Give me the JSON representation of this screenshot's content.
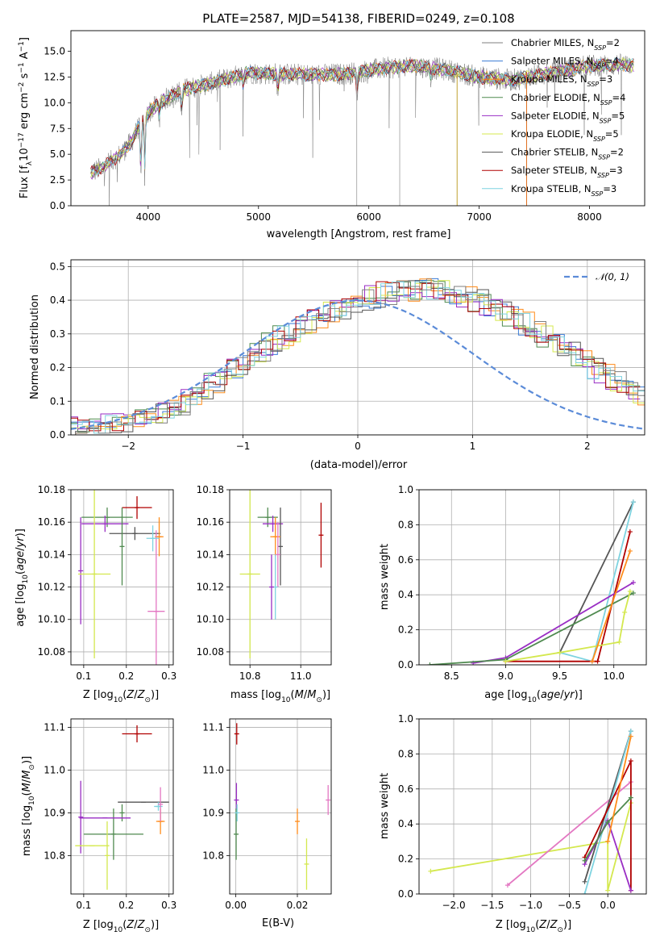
{
  "colors": {
    "chabrier_miles": "#7f7f7f",
    "salpeter_miles": "#3a7bd5",
    "kroupa_miles": "#ff8c1a",
    "chabrier_elodie": "#4f8a4f",
    "salpeter_elodie": "#9a2ec4",
    "kroupa_elodie": "#d4e84e",
    "chabrier_stelib": "#555555",
    "salpeter_stelib": "#b00000",
    "kroupa_stelib": "#7ed3e0",
    "extra_pink": "#e377c2",
    "normal_curve": "#5b8bd8"
  },
  "chart_data": [
    {
      "id": "spectrum",
      "type": "line",
      "title": "PLATE=2587, MJD=54138, FIBERID=0249, z=0.108",
      "xlabel": "wavelength [Angstrom, rest frame]",
      "ylabel": "Flux [f_λ10^-17 erg cm^-2 s^-1 A^-1]",
      "xlim": [
        3300,
        8500
      ],
      "ylim": [
        0,
        17
      ],
      "xticks": [
        4000,
        5000,
        6000,
        7000,
        8000
      ],
      "yticks": [
        "0.0",
        "2.5",
        "5.0",
        "7.5",
        "10.0",
        "12.5",
        "15.0"
      ],
      "continuum_points": [
        [
          3480,
          3.2
        ],
        [
          3600,
          3.8
        ],
        [
          3750,
          5.0
        ],
        [
          3850,
          6.2
        ],
        [
          3950,
          8.5
        ],
        [
          4100,
          10.0
        ],
        [
          4300,
          11.2
        ],
        [
          4600,
          12.0
        ],
        [
          4900,
          12.9
        ],
        [
          5200,
          12.8
        ],
        [
          5500,
          12.7
        ],
        [
          5800,
          12.8
        ],
        [
          6100,
          13.3
        ],
        [
          6400,
          13.6
        ],
        [
          6700,
          13.2
        ],
        [
          7000,
          12.5
        ],
        [
          7300,
          12.2
        ],
        [
          7700,
          13.0
        ],
        [
          8000,
          13.6
        ],
        [
          8300,
          13.7
        ]
      ],
      "absorption_features": [
        [
          3934,
          6.0
        ],
        [
          3969,
          6.0
        ],
        [
          4101,
          1.5
        ],
        [
          4304,
          2.5
        ],
        [
          4861,
          1.2
        ],
        [
          5175,
          2.0
        ],
        [
          5893,
          2.5
        ],
        [
          6563,
          1.0
        ]
      ],
      "series": [
        {
          "name": "Chabrier MILES, N_SSP=2",
          "legend_main": "Chabrier MILES, N",
          "legend_sub": "SSP",
          "legend_tail": "=2",
          "color_key": "chabrier_miles"
        },
        {
          "name": "Salpeter MILES, N_SSP=4",
          "legend_main": "Salpeter MILES, N",
          "legend_sub": "SSP",
          "legend_tail": "=4",
          "color_key": "salpeter_miles"
        },
        {
          "name": "Kroupa MILES, N_SSP=3",
          "legend_main": "Kroupa MILES, N",
          "legend_sub": "SSP",
          "legend_tail": "=3",
          "color_key": "kroupa_miles"
        },
        {
          "name": "Chabrier ELODIE, N_SSP=4",
          "legend_main": "Chabrier ELODIE, N",
          "legend_sub": "SSP",
          "legend_tail": "=4",
          "color_key": "chabrier_elodie"
        },
        {
          "name": "Salpeter ELODIE, N_SSP=5",
          "legend_main": "Salpeter ELODIE, N",
          "legend_sub": "SSP",
          "legend_tail": "=5",
          "color_key": "salpeter_elodie"
        },
        {
          "name": "Kroupa ELODIE, N_SSP=5",
          "legend_main": "Kroupa ELODIE, N",
          "legend_sub": "SSP",
          "legend_tail": "=5",
          "color_key": "kroupa_elodie"
        },
        {
          "name": "Chabrier STELIB, N_SSP=2",
          "legend_main": "Chabrier STELIB, N",
          "legend_sub": "SSP",
          "legend_tail": "=2",
          "color_key": "chabrier_stelib"
        },
        {
          "name": "Salpeter STELIB, N_SSP=3",
          "legend_main": "Salpeter STELIB, N",
          "legend_sub": "SSP",
          "legend_tail": "=3",
          "color_key": "salpeter_stelib"
        },
        {
          "name": "Kroupa STELIB, N_SSP=3",
          "legend_main": "Kroupa STELIB, N",
          "legend_sub": "SSP",
          "legend_tail": "=3",
          "color_key": "kroupa_stelib"
        }
      ],
      "legend_position": "upper right"
    },
    {
      "id": "residuals",
      "type": "histogram",
      "xlabel": "(data-model)/error",
      "ylabel": "Normed distribution",
      "xlim": [
        -2.5,
        2.5
      ],
      "ylim": [
        0,
        0.52
      ],
      "xticks": [
        -2,
        -1,
        0,
        1,
        2
      ],
      "xtick_labels": [
        "−2",
        "−1",
        "0",
        "1",
        "2"
      ],
      "yticks": [
        "0.0",
        "0.1",
        "0.2",
        "0.3",
        "0.4",
        "0.5"
      ],
      "bin_width": 0.1,
      "bins_start": -2.5,
      "base_profile": [
        0.02,
        0.022,
        0.025,
        0.03,
        0.034,
        0.04,
        0.05,
        0.06,
        0.075,
        0.09,
        0.11,
        0.13,
        0.155,
        0.18,
        0.2,
        0.225,
        0.25,
        0.27,
        0.29,
        0.31,
        0.33,
        0.35,
        0.36,
        0.375,
        0.39,
        0.4,
        0.41,
        0.42,
        0.425,
        0.43,
        0.43,
        0.43,
        0.425,
        0.42,
        0.41,
        0.4,
        0.385,
        0.37,
        0.35,
        0.33,
        0.31,
        0.29,
        0.27,
        0.25,
        0.225,
        0.2,
        0.18,
        0.16,
        0.14,
        0.12
      ],
      "normal_label": "𝒩(0, 1)",
      "normal_mu": 0,
      "normal_sigma": 1
    },
    {
      "id": "age_vs_Z",
      "type": "errorbar",
      "xlabel": "Z [log10(Z/Z⊙)]",
      "ylabel": "age  [log10(age/yr)]",
      "xlim": [
        0.07,
        0.31
      ],
      "ylim": [
        10.072,
        10.18
      ],
      "xticks": [
        0.1,
        0.2,
        0.3
      ],
      "yticks": [
        10.08,
        10.1,
        10.12,
        10.14,
        10.16,
        10.18
      ],
      "points": [
        {
          "color_key": "salpeter_stelib",
          "x": 0.225,
          "xerr": 0.035,
          "y": 10.169,
          "yerr": 0.007
        },
        {
          "color_key": "chabrier_elodie",
          "x": 0.155,
          "xerr": 0.06,
          "y": 10.163,
          "yerr": 0.006
        },
        {
          "color_key": "salpeter_elodie",
          "x": 0.15,
          "xerr": 0.055,
          "y": 10.159,
          "yerr": 0.005
        },
        {
          "color_key": "chabrier_stelib",
          "x": 0.22,
          "xerr": 0.06,
          "y": 10.153,
          "yerr": 0.004
        },
        {
          "color_key": "kroupa_miles",
          "x": 0.277,
          "xerr": 0.01,
          "y": 10.151,
          "yerr": 0.012
        },
        {
          "color_key": "extra_pink",
          "x": 0.27,
          "xerr": 0.02,
          "y": 10.105,
          "yerr": 0.05
        },
        {
          "color_key": "salpeter_elodie",
          "x": 0.093,
          "xerr": 0.0,
          "y": 10.13,
          "yerr": 0.033
        },
        {
          "color_key": "kroupa_elodie",
          "x": 0.125,
          "xerr": 0.038,
          "y": 10.128,
          "yerr": 0.052
        },
        {
          "color_key": "kroupa_stelib",
          "x": 0.262,
          "xerr": 0.015,
          "y": 10.15,
          "yerr": 0.008
        },
        {
          "color_key": "chabrier_elodie",
          "x": 0.19,
          "xerr": 0.0,
          "y": 10.145,
          "yerr": 0.024
        }
      ]
    },
    {
      "id": "age_vs_mass",
      "type": "errorbar",
      "xlabel": "mass [log10(M/M⊙)]",
      "xlim": [
        10.72,
        11.12
      ],
      "ylim": [
        10.072,
        10.18
      ],
      "xticks": [
        10.8,
        11.0
      ],
      "yticks": [
        10.08,
        10.1,
        10.12,
        10.14,
        10.16,
        10.18
      ],
      "points": [
        {
          "color_key": "salpeter_stelib",
          "x": 11.08,
          "xerr": 0.0,
          "y": 10.152,
          "yerr": 0.02
        },
        {
          "color_key": "chabrier_elodie",
          "x": 10.87,
          "xerr": 0.04,
          "y": 10.163,
          "yerr": 0.006
        },
        {
          "color_key": "salpeter_elodie",
          "x": 10.89,
          "xerr": 0.04,
          "y": 10.159,
          "yerr": 0.005
        },
        {
          "color_key": "chabrier_stelib",
          "x": 10.92,
          "xerr": 0.0,
          "y": 10.145,
          "yerr": 0.024
        },
        {
          "color_key": "kroupa_miles",
          "x": 10.9,
          "xerr": 0.02,
          "y": 10.151,
          "yerr": 0.012
        },
        {
          "color_key": "extra_pink",
          "x": 10.91,
          "xerr": 0.0,
          "y": 10.14,
          "yerr": 0.02
        },
        {
          "color_key": "kroupa_elodie",
          "x": 10.8,
          "xerr": 0.04,
          "y": 10.128,
          "yerr": 0.052
        },
        {
          "color_key": "kroupa_stelib",
          "x": 10.9,
          "xerr": 0.0,
          "y": 10.12,
          "yerr": 0.02
        },
        {
          "color_key": "salpeter_elodie",
          "x": 10.885,
          "xerr": 0.0,
          "y": 10.12,
          "yerr": 0.02
        }
      ]
    },
    {
      "id": "weights_vs_age",
      "type": "line",
      "xlabel": "age  [log10(age/yr)]",
      "ylabel": "mass weight",
      "xlim": [
        8.2,
        10.3
      ],
      "ylim": [
        0,
        1
      ],
      "xticks": [
        8.5,
        9.0,
        9.5,
        10.0
      ],
      "yticks": [
        0.0,
        0.2,
        0.4,
        0.6,
        0.8,
        1.0
      ],
      "series": [
        {
          "color_key": "chabrier_stelib",
          "points": [
            [
              9.5,
              0.07
            ],
            [
              10.18,
              0.93
            ]
          ]
        },
        {
          "color_key": "kroupa_stelib",
          "points": [
            [
              9.5,
              0.07
            ],
            [
              9.8,
              0.02
            ],
            [
              10.18,
              0.93
            ]
          ]
        },
        {
          "color_key": "salpeter_stelib",
          "points": [
            [
              9.0,
              0.02
            ],
            [
              9.85,
              0.02
            ],
            [
              10.15,
              0.76
            ]
          ]
        },
        {
          "color_key": "salpeter_elodie",
          "points": [
            [
              8.7,
              0.01
            ],
            [
              9.0,
              0.04
            ],
            [
              10.18,
              0.47
            ]
          ]
        },
        {
          "color_key": "chabrier_elodie",
          "points": [
            [
              8.3,
              0.0
            ],
            [
              9.0,
              0.03
            ],
            [
              10.18,
              0.41
            ]
          ]
        },
        {
          "color_key": "kroupa_elodie",
          "points": [
            [
              9.0,
              0.02
            ],
            [
              9.5,
              0.07
            ],
            [
              10.05,
              0.13
            ],
            [
              10.1,
              0.3
            ],
            [
              10.15,
              0.42
            ]
          ]
        },
        {
          "color_key": "kroupa_miles",
          "points": [
            [
              9.8,
              0.02
            ],
            [
              10.15,
              0.65
            ]
          ]
        }
      ]
    },
    {
      "id": "mass_vs_Z",
      "type": "errorbar",
      "xlabel": "Z [log10(Z/Z⊙)]",
      "ylabel": "mass [log10(M/M⊙)]",
      "xlim": [
        0.07,
        0.31
      ],
      "ylim": [
        10.71,
        11.12
      ],
      "xticks": [
        0.1,
        0.2,
        0.3
      ],
      "yticks": [
        10.8,
        10.9,
        11.0,
        11.1
      ],
      "points": [
        {
          "color_key": "salpeter_stelib",
          "x": 0.225,
          "xerr": 0.035,
          "y": 11.085,
          "yerr": 0.02
        },
        {
          "color_key": "chabrier_stelib",
          "x": 0.24,
          "xerr": 0.06,
          "y": 10.925,
          "yerr": 0.0
        },
        {
          "color_key": "chabrier_elodie",
          "x": 0.19,
          "xerr": 0.0,
          "y": 10.9,
          "yerr": 0.02
        },
        {
          "color_key": "chabrier_elodie",
          "x": 0.17,
          "xerr": 0.07,
          "y": 10.85,
          "yerr": 0.06
        },
        {
          "color_key": "salpeter_elodie",
          "x": 0.15,
          "xerr": 0.06,
          "y": 10.888,
          "yerr": 0.0
        },
        {
          "color_key": "salpeter_elodie",
          "x": 0.093,
          "xerr": 0.0,
          "y": 10.89,
          "yerr": 0.085
        },
        {
          "color_key": "kroupa_elodie",
          "x": 0.12,
          "xerr": 0.04,
          "y": 10.823,
          "yerr": 0.0
        },
        {
          "color_key": "kroupa_elodie",
          "x": 0.155,
          "xerr": 0.0,
          "y": 10.8,
          "yerr": 0.08
        },
        {
          "color_key": "kroupa_miles",
          "x": 0.28,
          "xerr": 0.01,
          "y": 10.88,
          "yerr": 0.03
        },
        {
          "color_key": "kroupa_stelib",
          "x": 0.275,
          "xerr": 0.01,
          "y": 10.915,
          "yerr": 0.01
        },
        {
          "color_key": "extra_pink",
          "x": 0.28,
          "xerr": 0.0,
          "y": 10.92,
          "yerr": 0.04
        }
      ]
    },
    {
      "id": "mass_vs_EBV",
      "type": "errorbar",
      "xlabel": "E(B-V)",
      "xlim": [
        -0.002,
        0.031
      ],
      "ylim": [
        10.71,
        11.12
      ],
      "xticks": [
        0.0,
        0.02
      ],
      "yticks": [
        10.8,
        10.9,
        11.0,
        11.1
      ],
      "points": [
        {
          "color_key": "salpeter_stelib",
          "x": 0.0003,
          "xerr": 0.0,
          "y": 11.085,
          "yerr": 0.025
        },
        {
          "color_key": "salpeter_elodie",
          "x": 0.0002,
          "xerr": 0.0,
          "y": 10.93,
          "yerr": 0.04
        },
        {
          "color_key": "chabrier_elodie",
          "x": 0.0001,
          "xerr": 0.0,
          "y": 10.85,
          "yerr": 0.06
        },
        {
          "color_key": "kroupa_stelib",
          "x": 0.0004,
          "xerr": 0.0,
          "y": 10.9,
          "yerr": 0.02
        },
        {
          "color_key": "kroupa_miles",
          "x": 0.02,
          "xerr": 0.0,
          "y": 10.88,
          "yerr": 0.03
        },
        {
          "color_key": "kroupa_elodie",
          "x": 0.023,
          "xerr": 0.0,
          "y": 10.78,
          "yerr": 0.06
        },
        {
          "color_key": "extra_pink",
          "x": 0.03,
          "xerr": 0.0,
          "y": 10.93,
          "yerr": 0.035
        }
      ]
    },
    {
      "id": "weights_vs_Z",
      "type": "line",
      "xlabel": "Z [log10(Z/Z⊙)]",
      "ylabel": "mass weight",
      "xlim": [
        -2.45,
        0.5
      ],
      "ylim": [
        0,
        1
      ],
      "xticks": [
        -2.0,
        -1.5,
        -1.0,
        -0.5,
        0.0
      ],
      "xtick_labels": [
        "−2.0",
        "−1.5",
        "−1.0",
        "−0.5",
        "0.0"
      ],
      "yticks": [
        0.0,
        0.2,
        0.4,
        0.6,
        0.8,
        1.0
      ],
      "series": [
        {
          "color_key": "kroupa_elodie",
          "points": [
            [
              -2.3,
              0.13
            ],
            [
              0.0,
              0.3
            ],
            [
              0.0,
              0.02
            ],
            [
              0.3,
              0.52
            ]
          ]
        },
        {
          "color_key": "extra_pink",
          "points": [
            [
              -1.3,
              0.05
            ],
            [
              0.3,
              0.64
            ]
          ]
        },
        {
          "color_key": "chabrier_stelib",
          "points": [
            [
              -0.3,
              0.07
            ],
            [
              0.3,
              0.93
            ]
          ]
        },
        {
          "color_key": "kroupa_stelib",
          "points": [
            [
              -0.3,
              0.0
            ],
            [
              0.3,
              0.93
            ]
          ]
        },
        {
          "color_key": "salpeter_stelib",
          "points": [
            [
              -0.3,
              0.21
            ],
            [
              0.3,
              0.76
            ],
            [
              0.3,
              0.02
            ]
          ]
        },
        {
          "color_key": "salpeter_elodie",
          "points": [
            [
              -0.3,
              0.17
            ],
            [
              0.0,
              0.42
            ],
            [
              0.3,
              0.02
            ]
          ]
        },
        {
          "color_key": "chabrier_elodie",
          "points": [
            [
              -0.3,
              0.19
            ],
            [
              0.0,
              0.41
            ],
            [
              0.3,
              0.55
            ]
          ]
        },
        {
          "color_key": "kroupa_miles",
          "points": [
            [
              0.0,
              0.3
            ],
            [
              0.3,
              0.9
            ]
          ]
        }
      ]
    }
  ]
}
